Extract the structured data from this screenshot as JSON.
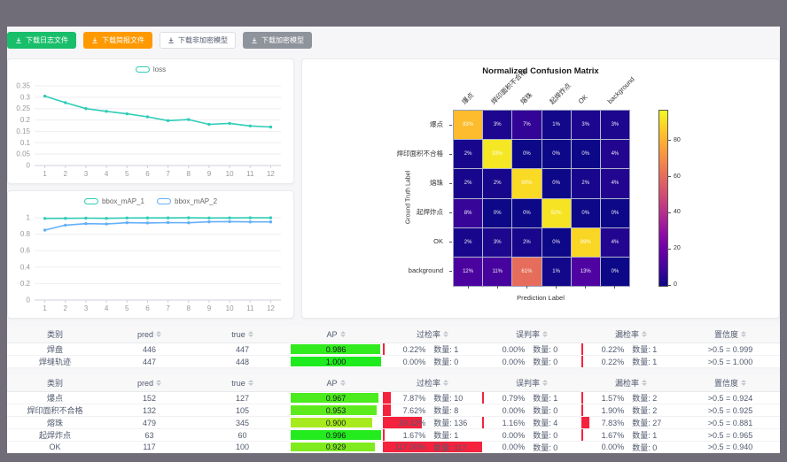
{
  "toolbar": {
    "buttons": [
      {
        "name": "download-log-button",
        "label": "下载日志文件",
        "type": "success"
      },
      {
        "name": "download-report-button",
        "label": "下载简报文件",
        "type": "warning"
      },
      {
        "name": "download-plain-model-button",
        "label": "下载非加密模型",
        "type": "default"
      },
      {
        "name": "download-encrypted-model-button",
        "label": "下载加密模型",
        "type": "gray"
      }
    ]
  },
  "chart_data": [
    {
      "id": "loss",
      "type": "line",
      "x": [
        1,
        2,
        3,
        4,
        5,
        6,
        7,
        8,
        9,
        10,
        11,
        12
      ],
      "ylim": [
        0,
        0.35
      ],
      "yticks": [
        0,
        0.05,
        0.1,
        0.15,
        0.2,
        0.25,
        0.3,
        0.35
      ],
      "legend_position": "top",
      "grid": true,
      "series": [
        {
          "name": "loss",
          "color": "#2fcdb6",
          "values": [
            0.305,
            0.276,
            0.25,
            0.238,
            0.227,
            0.214,
            0.197,
            0.202,
            0.181,
            0.185,
            0.174,
            0.169
          ]
        }
      ]
    },
    {
      "id": "bbox_map",
      "type": "line",
      "x": [
        1,
        2,
        3,
        4,
        5,
        6,
        7,
        8,
        9,
        10,
        11,
        12
      ],
      "ylim": [
        0,
        1
      ],
      "yticks": [
        0,
        0.2,
        0.4,
        0.6,
        0.8,
        1
      ],
      "legend_position": "top",
      "grid": true,
      "series": [
        {
          "name": "bbox_mAP_1",
          "color": "#2fcdb6",
          "values": [
            0.991,
            0.992,
            0.995,
            0.992,
            0.997,
            0.998,
            0.998,
            0.999,
            0.997,
            0.998,
            0.999,
            0.999
          ]
        },
        {
          "name": "bbox_mAP_2",
          "color": "#63b0f7",
          "values": [
            0.85,
            0.91,
            0.928,
            0.924,
            0.94,
            0.937,
            0.941,
            0.939,
            0.951,
            0.953,
            0.95,
            0.949
          ]
        }
      ]
    },
    {
      "id": "confusion",
      "type": "heatmap",
      "title": "Normalized Confusion Matrix",
      "xlabel": "Prediction Label",
      "ylabel": "Ground Truth Label",
      "labels": [
        "爆点",
        "焊印面积不合格",
        "熔珠",
        "起焊炸点",
        "OK",
        "background"
      ],
      "unit": "%",
      "matrix_pct": [
        [
          83,
          3,
          7,
          1,
          3,
          3
        ],
        [
          2,
          93,
          0,
          0,
          0,
          4
        ],
        [
          2,
          2,
          90,
          0,
          2,
          4
        ],
        [
          8,
          0,
          0,
          92,
          0,
          0
        ],
        [
          2,
          3,
          2,
          0,
          89,
          4
        ],
        [
          12,
          11,
          61,
          1,
          13,
          0
        ]
      ],
      "colormap": "plasma",
      "colorbar": {
        "vmax": 97,
        "ticks": [
          80,
          60,
          40,
          20,
          0
        ]
      }
    }
  ],
  "tables": {
    "headers": [
      {
        "key": "category",
        "label": "类别",
        "sortable": false
      },
      {
        "key": "pred",
        "label": "pred",
        "sortable": true
      },
      {
        "key": "true",
        "label": "true",
        "sortable": true
      },
      {
        "key": "ap",
        "label": "AP",
        "sortable": true
      },
      {
        "key": "over",
        "label": "过检率",
        "sortable": true
      },
      {
        "key": "mis",
        "label": "误判率",
        "sortable": true
      },
      {
        "key": "miss",
        "label": "漏检率",
        "sortable": true
      },
      {
        "key": "conf",
        "label": "置信度",
        "sortable": true
      }
    ],
    "groups": [
      {
        "rows": [
          {
            "category": "焊盘",
            "pred": "446",
            "true": "447",
            "ap": "0.986",
            "over": {
              "pct": "0.22%",
              "val": 0.22,
              "count": "数量: 1"
            },
            "mis": {
              "pct": "0.00%",
              "val": 0,
              "count": "数量: 0"
            },
            "miss": {
              "pct": "0.22%",
              "val": 0.22,
              "count": "数量: 1"
            },
            "conf": ">0.5 = 0.999"
          },
          {
            "category": "焊缝轨迹",
            "pred": "447",
            "true": "448",
            "ap": "1.000",
            "over": {
              "pct": "0.00%",
              "val": 0,
              "count": "数量: 0"
            },
            "mis": {
              "pct": "0.00%",
              "val": 0,
              "count": "数量: 0"
            },
            "miss": {
              "pct": "0.22%",
              "val": 0.22,
              "count": "数量: 1"
            },
            "conf": ">0.5 = 1.000"
          }
        ]
      },
      {
        "rows": [
          {
            "category": "爆点",
            "pred": "152",
            "true": "127",
            "ap": "0.967",
            "over": {
              "pct": "7.87%",
              "val": 7.87,
              "count": "数量: 10"
            },
            "mis": {
              "pct": "0.79%",
              "val": 0.79,
              "count": "数量: 1"
            },
            "miss": {
              "pct": "1.57%",
              "val": 1.57,
              "count": "数量: 2"
            },
            "conf": ">0.5 = 0.924"
          },
          {
            "category": "焊印面积不合格",
            "pred": "132",
            "true": "105",
            "ap": "0.953",
            "over": {
              "pct": "7.62%",
              "val": 7.62,
              "count": "数量: 8"
            },
            "mis": {
              "pct": "0.00%",
              "val": 0,
              "count": "数量: 0"
            },
            "miss": {
              "pct": "1.90%",
              "val": 1.9,
              "count": "数量: 2"
            },
            "conf": ">0.5 = 0.925"
          },
          {
            "category": "熔珠",
            "pred": "479",
            "true": "345",
            "ap": "0.900",
            "over": {
              "pct": "39.42%",
              "val": 39.42,
              "count": "数量: 136"
            },
            "mis": {
              "pct": "1.16%",
              "val": 1.16,
              "count": "数量: 4"
            },
            "miss": {
              "pct": "7.83%",
              "val": 7.83,
              "count": "数量: 27"
            },
            "conf": ">0.5 = 0.881"
          },
          {
            "category": "起焊炸点",
            "pred": "63",
            "true": "60",
            "ap": "0.996",
            "over": {
              "pct": "1.67%",
              "val": 1.67,
              "count": "数量: 1"
            },
            "mis": {
              "pct": "0.00%",
              "val": 0,
              "count": "数量: 0"
            },
            "miss": {
              "pct": "1.67%",
              "val": 1.67,
              "count": "数量: 1"
            },
            "conf": ">0.5 = 0.965"
          },
          {
            "category": "OK",
            "pred": "117",
            "true": "100",
            "ap": "0.929",
            "over": {
              "pct": "117.00%",
              "val": 117,
              "count": "数量: 117"
            },
            "mis": {
              "pct": "0.00%",
              "val": 0,
              "count": "数量: 0"
            },
            "miss": {
              "pct": "0.00%",
              "val": 0,
              "count": "数量: 0"
            },
            "conf": ">0.5 = 0.940"
          }
        ]
      }
    ]
  },
  "colors": {
    "accent_green": "#19be6b",
    "accent_orange": "#ff9900",
    "bar_red": "#f5223d",
    "line_teal": "#2fcdb6",
    "line_blue": "#63b0f7"
  }
}
